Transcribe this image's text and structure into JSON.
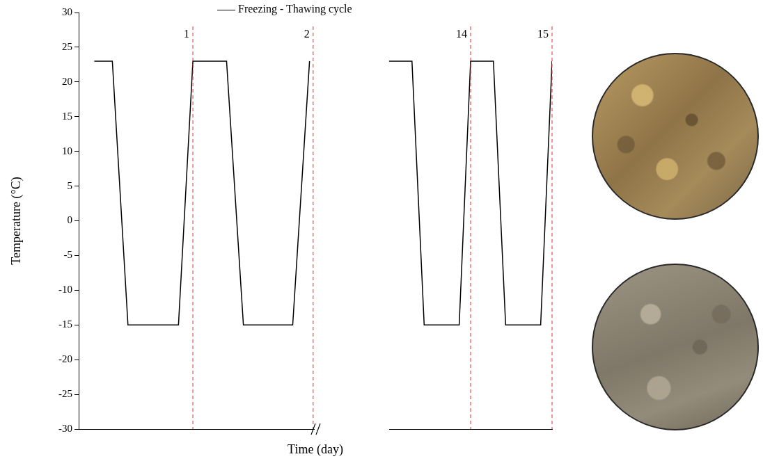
{
  "chart_data": [
    {
      "type": "line",
      "ylabel": "Temperature (°C)",
      "xlabel": "Time (day)",
      "legend": "top",
      "tick_labels": "y",
      "grid": false,
      "x": [
        0.18,
        0.33,
        0.46,
        0.88,
        1.0,
        1.28,
        1.42,
        1.83,
        1.97
      ],
      "series": [
        {
          "name": "Freezing - Thawing cycle",
          "color": "#000000",
          "values": [
            23,
            23,
            -15,
            -15,
            23,
            23,
            -15,
            -15,
            23
          ]
        }
      ],
      "xlim": [
        0.05,
        2.03
      ],
      "ylim": [
        -30,
        30
      ],
      "yticks": [
        -30,
        -25,
        -20,
        -15,
        -10,
        -5,
        0,
        5,
        10,
        15,
        20,
        25,
        30
      ],
      "annotations": [
        {
          "x": 1,
          "label": "1"
        },
        {
          "x": 2,
          "label": "2"
        }
      ]
    },
    {
      "type": "line",
      "tick_labels": false,
      "grid": false,
      "x": [
        13.0,
        13.28,
        13.43,
        13.86,
        14.0,
        14.28,
        14.43,
        14.86,
        15.0
      ],
      "series": [
        {
          "color": "#000000",
          "values": [
            23,
            23,
            -15,
            -15,
            23,
            23,
            -15,
            -15,
            23
          ]
        }
      ],
      "xlim": [
        13,
        15
      ],
      "ylim": [
        -30,
        30
      ],
      "annotations": [
        {
          "x": 14,
          "label": "14"
        },
        {
          "x": 15,
          "label": "15"
        }
      ]
    }
  ]
}
